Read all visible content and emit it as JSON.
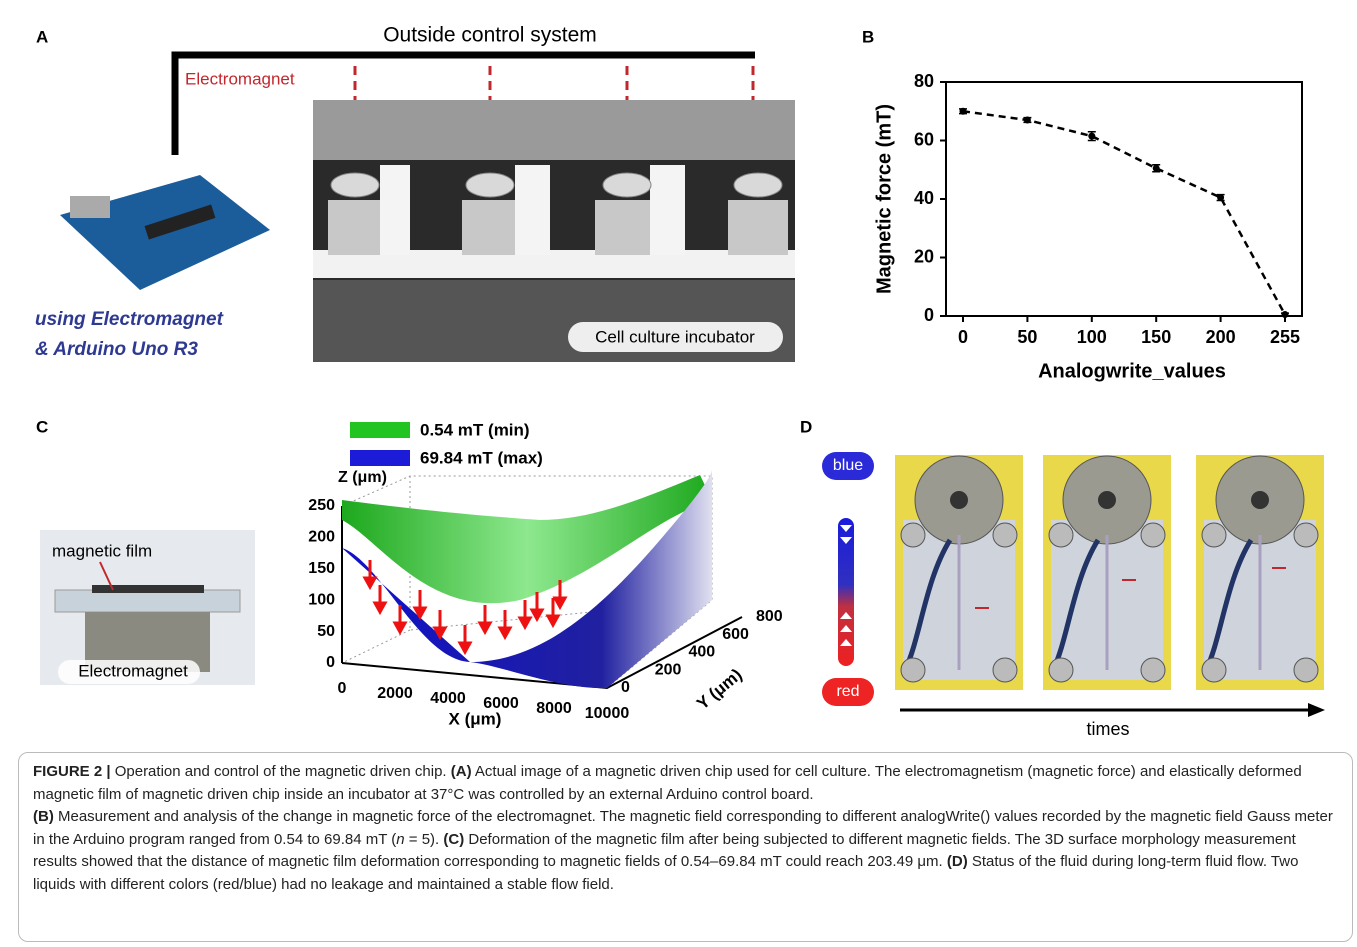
{
  "panel_labels": [
    "A",
    "B",
    "C",
    "D"
  ],
  "panel_a": {
    "title": "Outside control system",
    "electromagnet": "Electromagnet",
    "incubator": "Cell culture incubator",
    "board_caption": [
      "using Electromagnet",
      "& Arduino Uno R3"
    ]
  },
  "chart_data": {
    "type": "line",
    "categories": [
      "0",
      "50",
      "100",
      "150",
      "200",
      "255"
    ],
    "series": [
      {
        "color": "#000000",
        "values": [
          70,
          67,
          61.5,
          50.5,
          40.5,
          0.5
        ],
        "errors": [
          0.8,
          0.8,
          1.5,
          1.2,
          1,
          0.5
        ]
      }
    ],
    "ylim": [
      0,
      80
    ],
    "yticks": [
      0,
      20,
      40,
      60,
      80
    ],
    "xlabel": "Analogwrite_values",
    "ylabel": "Magnetic force (mT)",
    "line_style": "dashed"
  },
  "panel_c": {
    "photo_labels": [
      "magnetic film",
      "Electromagnet"
    ],
    "legend": [
      {
        "name": "0.54 mT (min)",
        "color": "#22c422"
      },
      {
        "name": "69.84 mT (max)",
        "color": "#1c1cd8"
      }
    ],
    "zlabel": "Z (μm)",
    "xlabel": "X (μm)",
    "ylabel": "Y (μm)",
    "zticks": [
      0,
      50,
      100,
      150,
      200,
      250
    ],
    "xticks": [
      0,
      2000,
      4000,
      6000,
      8000,
      10000
    ],
    "yticks": [
      0,
      200,
      400,
      600,
      800
    ]
  },
  "panel_d": {
    "top": "blue",
    "bottom": "red",
    "axis": "times"
  },
  "caption": [
    "FIGURE 2 |",
    " Operation and control of the magnetic driven chip. ",
    "(A)",
    " Actual image of a magnetic driven chip used for cell culture. The electromagnetism (magnetic force) and elastically deformed magnetic film of magnetic driven chip inside an incubator at 37°C was controlled by an external Arduino control board.",
    "(B)",
    " Measurement and analysis of the change in magnetic force of the electromagnet. The magnetic field corresponding to different analogWrite() values recorded by the magnetic field Gauss meter in the Arduino program ranged from 0.54 to 69.84 mT (",
    "n",
    " = 5). ",
    "(C)",
    " Deformation of the magnetic film after being subjected to different magnetic fields. The 3D surface morphology measurement results showed that the distance of magnetic film deformation corresponding to magnetic fields of 0.54–69.84 mT could reach 203.49 μm. ",
    "(D)",
    " Status of the fluid during long-term fluid flow. Two liquids with different colors (red/blue) had no leakage and maintained a stable flow field."
  ]
}
